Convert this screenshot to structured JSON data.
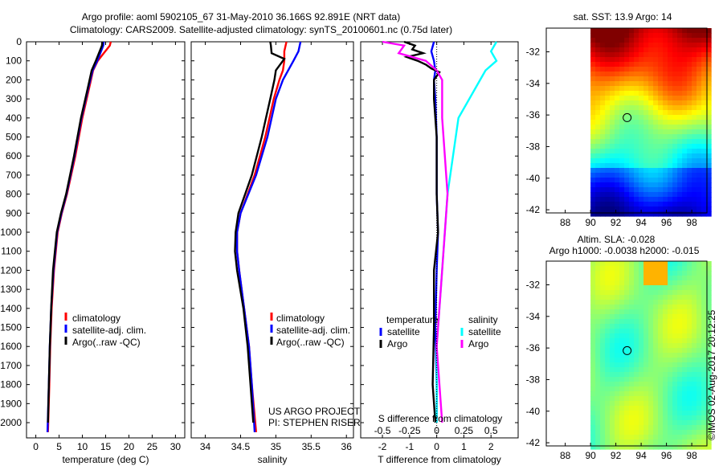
{
  "title": {
    "line1": "Argo profile: aoml 5902105_67 31-May-2010 36.166S 92.891E (NRT data)",
    "line2": "Climatology: CARS2009. Satellite-adjusted climatology: synTS_20100601.nc (0.75d later)"
  },
  "side_text": "©IMOS 02-Aug-2017 20:12:25",
  "project_text": [
    "US ARGO PROJECT",
    "PI: STEPHEN RISER"
  ],
  "colors": {
    "red": "#ff0000",
    "blue": "#0000ff",
    "black": "#000000",
    "cyan": "#00ffff",
    "magenta": "#ff00ff"
  },
  "chart_data": [
    {
      "type": "line",
      "name": "temperature",
      "xlabel": "temperature (deg C)",
      "xlim": [
        -2,
        32
      ],
      "ylim": [
        2080,
        0
      ],
      "xticks": [
        "0",
        "5",
        "10",
        "15",
        "20",
        "25",
        "30"
      ],
      "yticks": [
        "0",
        "100",
        "200",
        "300",
        "400",
        "500",
        "600",
        "700",
        "800",
        "900",
        "1000",
        "1100",
        "1200",
        "1300",
        "1400",
        "1500",
        "1600",
        "1700",
        "1800",
        "1900",
        "2000"
      ],
      "legend": [
        "climatology",
        "satellite-adj. clim.",
        "Argo(..raw -QC)"
      ],
      "series": [
        {
          "name": "climatology",
          "color": "#ff0000",
          "depth": [
            0,
            20,
            100,
            150,
            250,
            400,
            600,
            800,
            900,
            1000,
            1200,
            1400,
            1600,
            1800,
            2050
          ],
          "values": [
            16.1,
            15.9,
            13.3,
            12.3,
            11.4,
            10.0,
            8.5,
            6.7,
            5.6,
            4.7,
            3.9,
            3.4,
            3.1,
            2.9,
            2.6
          ]
        },
        {
          "name": "satellite-adj. clim.",
          "color": "#0000ff",
          "depth": [
            0,
            20,
            100,
            150,
            250,
            400,
            600,
            800,
            900,
            1000,
            1200,
            1400,
            1600,
            1800,
            2050
          ],
          "values": [
            14.6,
            14.5,
            13.2,
            12.2,
            11.2,
            9.8,
            8.3,
            6.6,
            5.5,
            4.6,
            3.8,
            3.3,
            3.0,
            2.8,
            2.5
          ]
        },
        {
          "name": "Argo(..raw -QC)",
          "color": "#000000",
          "depth": [
            0,
            20,
            100,
            150,
            250,
            400,
            600,
            800,
            900,
            1000,
            1200,
            1400,
            1600,
            1800,
            2000
          ],
          "values": [
            14.3,
            14.2,
            12.9,
            12.0,
            11.1,
            9.7,
            8.2,
            6.5,
            5.4,
            4.5,
            3.7,
            3.3,
            3.0,
            2.8,
            2.6
          ]
        }
      ]
    },
    {
      "type": "line",
      "name": "salinity",
      "xlabel": "salinity",
      "xlim": [
        33.8,
        36.1
      ],
      "ylim": [
        2080,
        0
      ],
      "xticks": [
        "34",
        "34.5",
        "35",
        "35.5",
        "36"
      ],
      "legend": [
        "climatology",
        "satellite-adj. clim.",
        "Argo(..raw -QC)"
      ],
      "series": [
        {
          "name": "climatology",
          "color": "#ff0000",
          "depth": [
            0,
            50,
            100,
            150,
            200,
            300,
            500,
            700,
            900,
            1000,
            1100,
            1200,
            1400,
            1600,
            1800,
            2050
          ],
          "values": [
            35.15,
            35.12,
            35.12,
            35.1,
            35.05,
            34.97,
            34.85,
            34.7,
            34.5,
            34.45,
            34.45,
            34.48,
            34.55,
            34.62,
            34.66,
            34.72
          ]
        },
        {
          "name": "satellite-adj. clim.",
          "color": "#0000ff",
          "depth": [
            0,
            50,
            100,
            200,
            300,
            500,
            700,
            900,
            1000,
            1100,
            1200,
            1400,
            1600,
            1800,
            2050
          ],
          "values": [
            35.35,
            35.32,
            35.25,
            35.1,
            35.0,
            34.88,
            34.72,
            34.5,
            34.45,
            34.45,
            34.48,
            34.55,
            34.62,
            34.66,
            34.7
          ]
        },
        {
          "name": "Argo(..raw -QC)",
          "color": "#000000",
          "depth": [
            0,
            20,
            60,
            90,
            110,
            150,
            200,
            300,
            500,
            700,
            900,
            1000,
            1100,
            1200,
            1400,
            1600,
            1800,
            2000
          ],
          "values": [
            34.92,
            34.93,
            34.94,
            35.12,
            35.08,
            35.0,
            34.98,
            34.92,
            34.8,
            34.66,
            34.47,
            34.43,
            34.42,
            34.45,
            34.54,
            34.6,
            34.64,
            34.68
          ]
        }
      ]
    },
    {
      "type": "line",
      "name": "difference",
      "xlabel": "T difference from climatology",
      "xlabel2": "S difference from climatology",
      "xlim": [
        -2.8,
        3.0
      ],
      "xlim_salinity": [
        -0.7,
        0.75
      ],
      "ylim": [
        2080,
        0
      ],
      "xticks": [
        "-2",
        "-1",
        "0",
        "1",
        "2"
      ],
      "xticks_salinity": [
        "-0.5",
        "-0.25",
        "0",
        "0.25",
        "0.5"
      ],
      "legend_temperature": {
        "title": "temperature",
        "items": [
          "satellite",
          "Argo"
        ]
      },
      "legend_salinity": {
        "title": "salinity",
        "items": [
          "satellite",
          "Argo"
        ]
      },
      "series": [
        {
          "name": "temperature satellite",
          "color": "#0000ff",
          "depth": [
            0,
            50,
            100,
            150,
            200,
            300,
            500,
            800,
            1000,
            1200,
            1500,
            1800,
            2000
          ],
          "values": [
            -0.1,
            -0.2,
            -0.1,
            -0.05,
            -0.1,
            -0.05,
            0.0,
            0.0,
            0.05,
            0.0,
            -0.05,
            0.0,
            0.0
          ]
        },
        {
          "name": "temperature Argo",
          "color": "#000000",
          "depth": [
            0,
            20,
            40,
            60,
            80,
            100,
            120,
            140,
            160,
            200,
            300,
            500,
            800,
            1000,
            1200,
            1500,
            1800,
            2000
          ],
          "values": [
            -1.2,
            -0.8,
            -0.9,
            -0.5,
            -1.1,
            -0.7,
            -0.4,
            -0.2,
            0.1,
            -0.1,
            -0.1,
            0.0,
            0.0,
            0.05,
            -0.1,
            -0.1,
            -0.15,
            -0.05
          ]
        },
        {
          "name": "salinity satellite",
          "color": "#00ffff",
          "depth": [
            0,
            50,
            100,
            150,
            200,
            400,
            800,
            1200,
            1600,
            2000
          ],
          "values": [
            0.55,
            0.5,
            0.55,
            0.45,
            0.4,
            0.2,
            0.1,
            0.05,
            0.0,
            0.0
          ]
        },
        {
          "name": "salinity Argo",
          "color": "#ff00ff",
          "depth": [
            0,
            20,
            60,
            100,
            150,
            200,
            400,
            800,
            1200,
            1600,
            2000
          ],
          "values": [
            -0.5,
            -0.3,
            -0.35,
            -0.1,
            0.0,
            0.05,
            0.05,
            0.1,
            0.05,
            0.0,
            0.05
          ]
        }
      ]
    },
    {
      "type": "heatmap",
      "name": "sat-sst-map",
      "title": "sat. SST: 13.9 Argo: 14",
      "xticks": [
        "88",
        "90",
        "92",
        "94",
        "96",
        "98"
      ],
      "yticks": [
        "-32",
        "-34",
        "-36",
        "-38",
        "-40",
        "-42"
      ],
      "xlim": [
        86.5,
        99.2
      ],
      "ylim": [
        -42.2,
        -30.5
      ],
      "argo_position": [
        92.891,
        -36.166
      ]
    },
    {
      "type": "heatmap",
      "name": "altim-sla-map",
      "title": "Altim. SLA: -0.028",
      "title2": "Argo h1000: -0.0038 h2000: -0.015",
      "xticks": [
        "88",
        "90",
        "92",
        "94",
        "96",
        "98"
      ],
      "yticks": [
        "-32",
        "-34",
        "-36",
        "-38",
        "-40",
        "-42"
      ],
      "xlim": [
        86.5,
        99.2
      ],
      "ylim": [
        -42.2,
        -30.5
      ],
      "argo_position": [
        92.891,
        -36.166
      ]
    }
  ]
}
